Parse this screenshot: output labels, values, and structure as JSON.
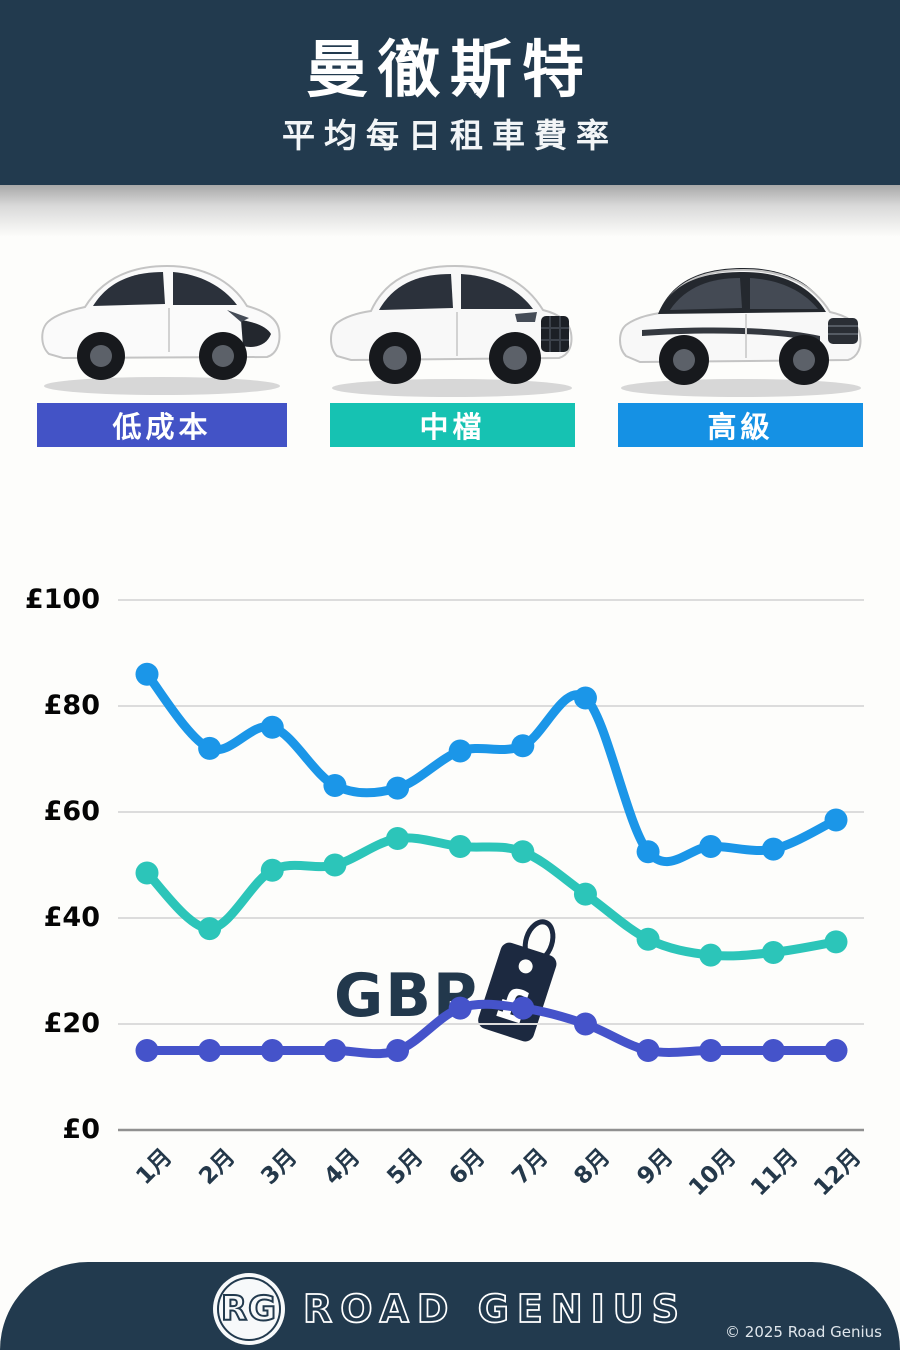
{
  "header": {
    "title": "曼徹斯特",
    "subtitle": "平均每日租車費率"
  },
  "categories": [
    {
      "label": "低成本",
      "color": "#4353c6"
    },
    {
      "label": "中檔",
      "color": "#16c2b2"
    },
    {
      "label": "高級",
      "color": "#1591e4"
    }
  ],
  "currency": {
    "code": "GBP",
    "symbol": "£"
  },
  "chart_data": {
    "type": "line",
    "x": [
      "1月",
      "2月",
      "3月",
      "4月",
      "5月",
      "6月",
      "7月",
      "8月",
      "9月",
      "10月",
      "11月",
      "12月"
    ],
    "series": [
      {
        "name": "高級",
        "color": "#1b96e8",
        "values": [
          86,
          72,
          76,
          65,
          64.5,
          71.5,
          72.5,
          81.5,
          52.5,
          53.5,
          53,
          58.5
        ]
      },
      {
        "name": "中檔",
        "color": "#2cc5b9",
        "values": [
          48.5,
          38,
          49,
          50,
          55,
          53.5,
          52.5,
          44.5,
          36,
          33,
          33.5,
          35.5
        ]
      },
      {
        "name": "低成本",
        "color": "#4553ca",
        "values": [
          15,
          15,
          15,
          15,
          15,
          23,
          23,
          20,
          15,
          15,
          15,
          15
        ]
      }
    ],
    "title": "曼徹斯特 平均每日租車費率 (GBP)",
    "xlabel": "",
    "ylabel": "",
    "ylim": [
      0,
      100
    ],
    "yticks": [
      0,
      20,
      40,
      60,
      80,
      100
    ],
    "ytick_labels": [
      "£0",
      "£20",
      "£40",
      "£60",
      "£80",
      "£100"
    ],
    "grid": true,
    "legend_position": "none"
  },
  "footer": {
    "logo_text": "RG",
    "brand": "ROAD GENIUS",
    "copyright": "© 2025 Road Genius"
  }
}
